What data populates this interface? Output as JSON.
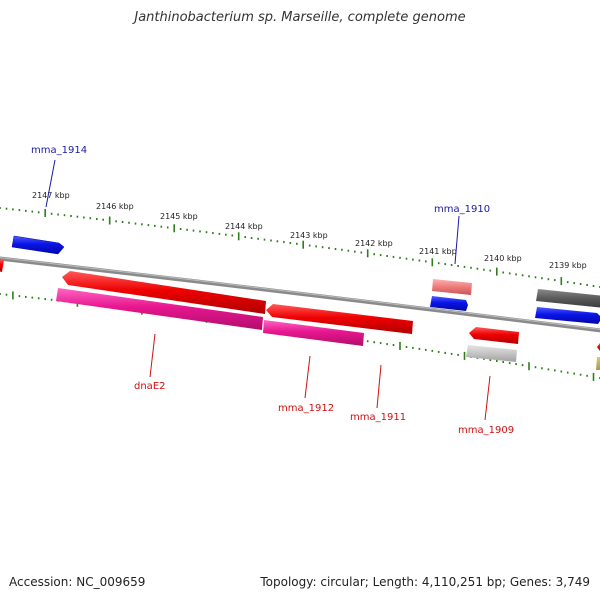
{
  "title": "Janthinobacterium sp. Marseille, complete genome",
  "footer": {
    "accession": "Accession: NC_009659",
    "summary": "Topology: circular; Length: 4,110,251 bp; Genes: 3,749"
  },
  "colors": {
    "backbone": "#808080",
    "tick": "#2e7d1e",
    "ruler_label": "#222222",
    "label_blue": "#1a1aa6",
    "label_red": "#cc1111"
  },
  "ruler": {
    "unit": "kbp",
    "labels": [
      "2147 kbp",
      "2146 kbp",
      "2145 kbp",
      "2144 kbp",
      "2143 kbp",
      "2142 kbp",
      "2141 kbp",
      "2140 kbp",
      "2139 kbp"
    ]
  },
  "features": [
    {
      "name": "mma_1914",
      "color": "blue"
    },
    {
      "name": "mma_1910",
      "color": "blue"
    },
    {
      "name": "dnaE2",
      "color": "red"
    },
    {
      "name": "mma_1912",
      "color": "red"
    },
    {
      "name": "mma_1911",
      "color": "red"
    },
    {
      "name": "mma_1909",
      "color": "red"
    }
  ]
}
